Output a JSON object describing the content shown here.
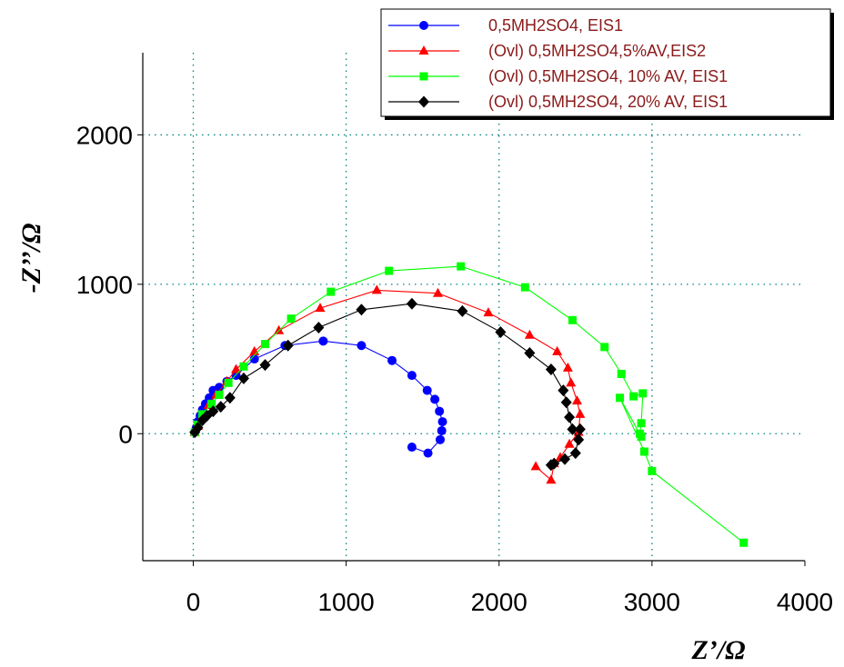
{
  "chart_data": {
    "type": "scatter",
    "xlabel": "Z’/Ω",
    "ylabel": "-Z’’/Ω",
    "xlim": [
      -330,
      4000
    ],
    "ylim": [
      -850,
      2550
    ],
    "x_ticks": [
      0,
      1000,
      2000,
      3000,
      4000
    ],
    "y_ticks": [
      0,
      1000,
      2000
    ],
    "grid": true,
    "legend_position": "top-right",
    "series": [
      {
        "name": "0,5MH2SO4, EIS1",
        "color": "#0000ff",
        "marker": "circle",
        "x": [
          10,
          20,
          30,
          45,
          60,
          80,
          105,
          130,
          170,
          220,
          280,
          400,
          600,
          850,
          1100,
          1300,
          1430,
          1530,
          1580,
          1610,
          1630,
          1625,
          1615,
          1535,
          1430
        ],
        "y": [
          10,
          40,
          80,
          120,
          160,
          200,
          240,
          290,
          310,
          350,
          390,
          500,
          590,
          620,
          590,
          490,
          390,
          290,
          230,
          150,
          80,
          20,
          -40,
          -130,
          -90
        ]
      },
      {
        "name": "(Ovl) 0,5MH2SO4,5%AV,EIS2",
        "color": "#ff0000",
        "marker": "triangle",
        "x": [
          10,
          30,
          60,
          100,
          150,
          220,
          280,
          400,
          560,
          830,
          1200,
          1600,
          1930,
          2200,
          2380,
          2450,
          2470,
          2510,
          2530,
          2520,
          2460,
          2400,
          2360,
          2340,
          2240
        ],
        "y": [
          10,
          50,
          120,
          190,
          260,
          350,
          430,
          550,
          690,
          840,
          960,
          940,
          810,
          660,
          550,
          440,
          340,
          220,
          130,
          10,
          -70,
          -160,
          -200,
          -310,
          -220
        ]
      },
      {
        "name": "(Ovl) 0,5MH2SO4, 10% AV, EIS1",
        "color": "#00ff00",
        "marker": "square",
        "x": [
          10,
          30,
          60,
          120,
          170,
          230,
          330,
          470,
          640,
          900,
          1280,
          1750,
          2170,
          2480,
          2690,
          2800,
          2880,
          2940,
          2930,
          2920,
          2930,
          2790,
          2950,
          3000,
          3600
        ],
        "y": [
          10,
          60,
          130,
          200,
          260,
          340,
          450,
          600,
          770,
          950,
          1090,
          1120,
          980,
          760,
          580,
          400,
          250,
          270,
          70,
          0,
          -20,
          240,
          -120,
          -250,
          -730
        ]
      },
      {
        "name": "(Ovl) 0,5MH2SO4, 20% AV, EIS1",
        "color": "#000000",
        "marker": "diamond",
        "x": [
          10,
          30,
          60,
          90,
          130,
          180,
          240,
          330,
          470,
          620,
          820,
          1100,
          1430,
          1760,
          2010,
          2200,
          2340,
          2420,
          2440,
          2460,
          2480,
          2520,
          2530,
          2500,
          2430,
          2360,
          2340
        ],
        "y": [
          10,
          40,
          90,
          120,
          150,
          180,
          240,
          370,
          460,
          590,
          710,
          830,
          870,
          820,
          680,
          540,
          430,
          290,
          210,
          110,
          30,
          -40,
          30,
          -130,
          -170,
          -200,
          -210
        ]
      }
    ]
  }
}
